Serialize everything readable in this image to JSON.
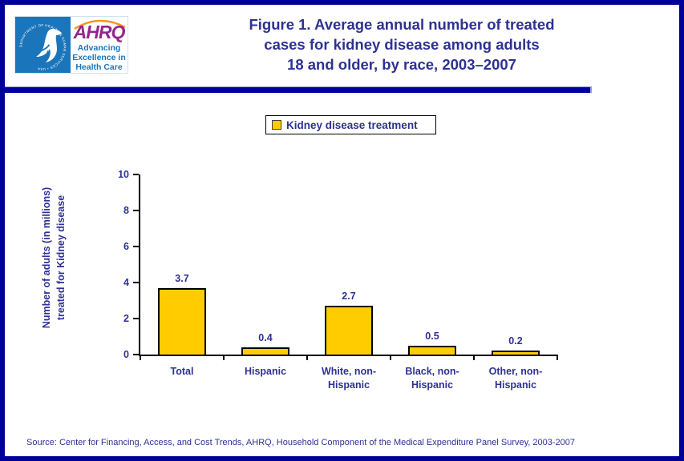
{
  "header": {
    "title": "Figure 1. Average annual number of treated\ncases for kidney disease among adults\n18 and older, by race, 2003–2007",
    "logo": {
      "seal_ring_text": "DEPARTMENT OF HEALTH & HUMAN SERVICES • USA",
      "wordmark": "AHRQ",
      "tagline": "Advancing\nExcellence in\nHealth Care"
    }
  },
  "chart_data": {
    "type": "bar",
    "title": "Figure 1. Average annual number of treated cases for kidney disease among adults 18 and older, by race, 2003–2007",
    "series_label": "Kidney disease treatment",
    "categories": [
      "Total",
      "Hispanic",
      "White, non-\nHispanic",
      "Black, non-\nHispanic",
      "Other, non-\nHispanic"
    ],
    "values": [
      3.7,
      0.4,
      2.7,
      0.5,
      0.2
    ],
    "value_labels": [
      "3.7",
      "0.4",
      "2.7",
      "0.5",
      "0.2"
    ],
    "ylabel": "Number of adults (in millions)\ntreated for Kidney disease",
    "xlabel": "",
    "ylim": [
      0,
      10
    ],
    "yticks": [
      0,
      2,
      4,
      6,
      8,
      10
    ],
    "bar_color": "#FFCC00",
    "grid": false,
    "legend_position": "top-center"
  },
  "footer": {
    "source": "Source: Center for Financing, Access, and Cost Trends, AHRQ, Household Component of the Medical Expenditure Panel Survey, 2003-2007"
  },
  "colors": {
    "accent_navy": "#000099",
    "text_navy": "#2E3192",
    "bar_yellow": "#FFCC00",
    "logo_blue": "#1B75BB",
    "logo_purple": "#92278F",
    "arc_orange": "#F7941D"
  }
}
